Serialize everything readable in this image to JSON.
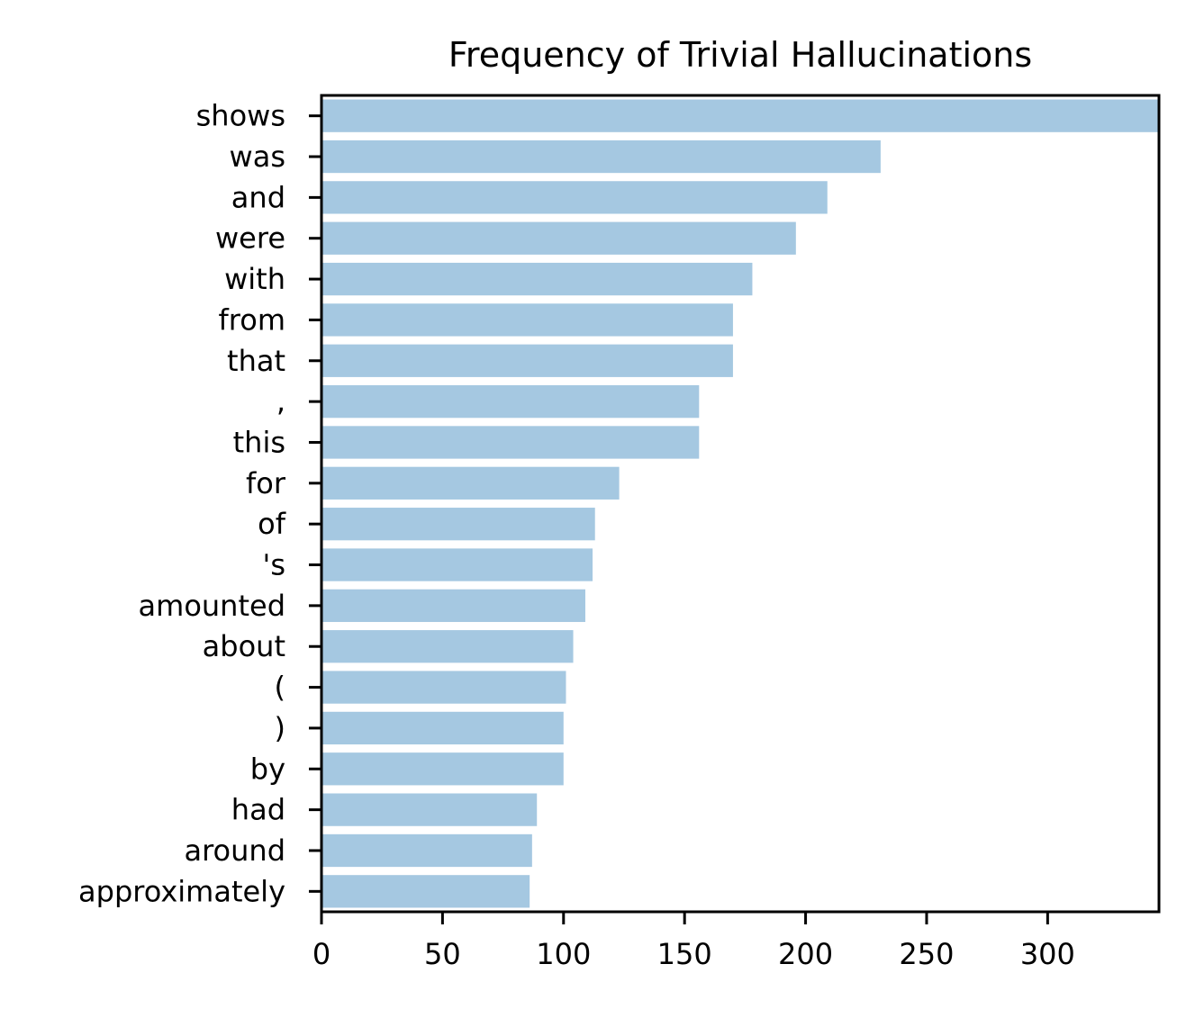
{
  "chart_data": {
    "type": "bar",
    "orientation": "horizontal",
    "title": "Frequency of Trivial Hallucinations",
    "xlabel": "",
    "ylabel": "",
    "categories": [
      "shows",
      "was",
      "and",
      "were",
      "with",
      "from",
      "that",
      ",",
      "this",
      "for",
      "of",
      "'s",
      "amounted",
      "about",
      "(",
      ")",
      "by",
      "had",
      "around",
      "approximately"
    ],
    "values": [
      346,
      231,
      209,
      196,
      178,
      170,
      170,
      156,
      156,
      123,
      113,
      112,
      109,
      104,
      101,
      100,
      100,
      89,
      87,
      86
    ],
    "xlim": [
      0,
      346
    ],
    "xticks": [
      0,
      50,
      100,
      150,
      200,
      250,
      300
    ],
    "xtick_labels": [
      "0",
      "50",
      "100",
      "150",
      "200",
      "250",
      "300"
    ],
    "grid": false,
    "legend": "none",
    "colors": {
      "bar": "#a5c8e1",
      "axis": "#000000"
    }
  }
}
